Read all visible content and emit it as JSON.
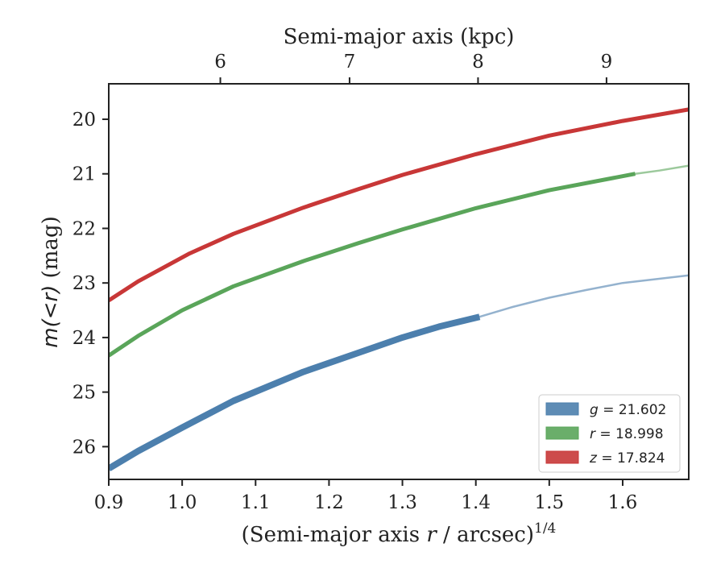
{
  "chart_data": {
    "type": "line",
    "xlabel_main": "(Semi-major axis ",
    "xlabel_var": "r",
    "xlabel_rest": " / arcsec)",
    "xlabel_sup": "1/4",
    "ylabel_var": "m(<r)",
    "ylabel_unit": " (mag)",
    "x2label": "Semi-major axis (kpc)",
    "xlim": [
      0.9,
      1.69
    ],
    "ylim": [
      26.6,
      19.35
    ],
    "y_inverted": true,
    "xticks": [
      "0.9",
      "1.0",
      "1.1",
      "1.2",
      "1.3",
      "1.4",
      "1.5",
      "1.6"
    ],
    "yticks": [
      "20",
      "21",
      "22",
      "23",
      "24",
      "25",
      "26"
    ],
    "x2ticks": [
      {
        "label": "6",
        "at_x": 1.052
      },
      {
        "label": "7",
        "at_x": 1.228
      },
      {
        "label": "8",
        "at_x": 1.403
      },
      {
        "label": "9",
        "at_x": 1.578
      }
    ],
    "legend_position": "lower-right",
    "grid": false,
    "series": [
      {
        "name_var": "g",
        "name_value": "= 21.602",
        "color": "#4c7fad",
        "solid_x": [
          0.9,
          0.94,
          1.0,
          1.07,
          1.165,
          1.24,
          1.3,
          1.35,
          1.405
        ],
        "solid_y": [
          26.4,
          26.08,
          25.65,
          25.16,
          24.63,
          24.28,
          24.0,
          23.8,
          23.62
        ],
        "solid_width": 8,
        "ext_x": [
          1.405,
          1.45,
          1.5,
          1.55,
          1.6,
          1.69
        ],
        "ext_y": [
          23.62,
          23.44,
          23.27,
          23.13,
          23.0,
          22.86
        ]
      },
      {
        "name_var": "r",
        "name_value": "= 18.998",
        "color": "#5aa55a",
        "solid_x": [
          0.9,
          0.94,
          1.0,
          1.07,
          1.165,
          1.24,
          1.3,
          1.4,
          1.5,
          1.617
        ],
        "solid_y": [
          24.33,
          23.97,
          23.5,
          23.06,
          22.6,
          22.27,
          22.02,
          21.63,
          21.3,
          21.0
        ],
        "solid_width": 5,
        "ext_x": [
          1.617,
          1.65,
          1.69
        ],
        "ext_y": [
          21.0,
          20.94,
          20.85
        ]
      },
      {
        "name_var": "z",
        "name_value": "= 17.824",
        "color": "#c83737",
        "solid_x": [
          0.9,
          0.94,
          1.01,
          1.07,
          1.165,
          1.24,
          1.3,
          1.4,
          1.5,
          1.6,
          1.69
        ],
        "solid_y": [
          23.32,
          22.97,
          22.46,
          22.1,
          21.62,
          21.28,
          21.02,
          20.64,
          20.3,
          20.03,
          19.82
        ],
        "solid_width": 5,
        "ext_x": [],
        "ext_y": []
      }
    ]
  }
}
